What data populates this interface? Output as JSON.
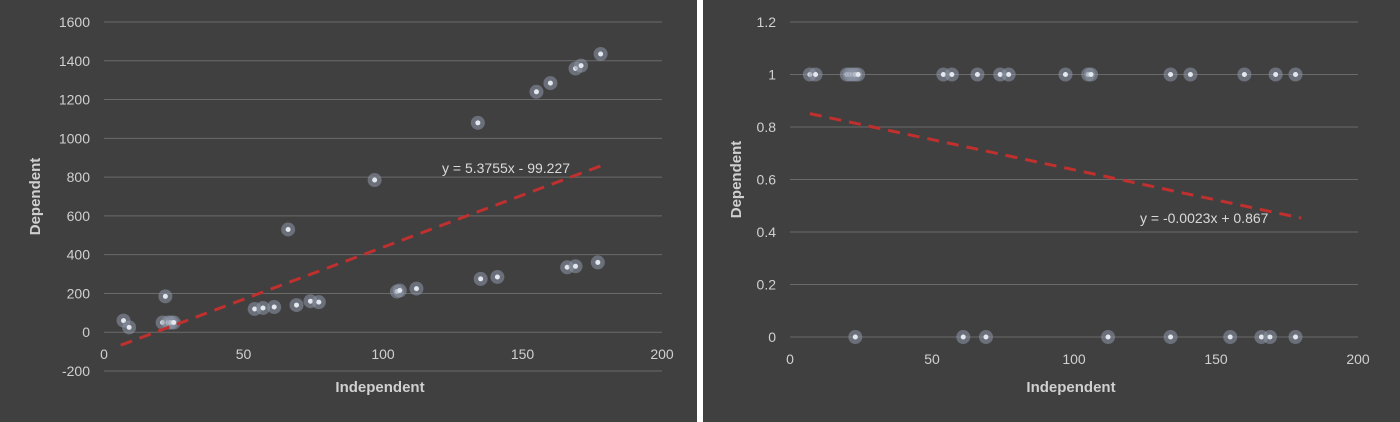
{
  "chart_data": [
    {
      "type": "scatter",
      "xlabel": "Independent",
      "ylabel": "Dependent",
      "xlim": [
        0,
        200
      ],
      "ylim": [
        -200,
        1600
      ],
      "x_ticks": [
        "0",
        "50",
        "100",
        "150",
        "200"
      ],
      "y_ticks": [
        "-200",
        "0",
        "200",
        "400",
        "600",
        "800",
        "1000",
        "1200",
        "1400",
        "1600"
      ],
      "grid": "horizontal",
      "points": [
        {
          "x": 7,
          "y": 60
        },
        {
          "x": 9,
          "y": 25
        },
        {
          "x": 21,
          "y": 50
        },
        {
          "x": 22,
          "y": 185
        },
        {
          "x": 23,
          "y": 50
        },
        {
          "x": 24,
          "y": 50
        },
        {
          "x": 25,
          "y": 50
        },
        {
          "x": 54,
          "y": 120
        },
        {
          "x": 57,
          "y": 125
        },
        {
          "x": 61,
          "y": 130
        },
        {
          "x": 66,
          "y": 530
        },
        {
          "x": 69,
          "y": 140
        },
        {
          "x": 74,
          "y": 160
        },
        {
          "x": 77,
          "y": 155
        },
        {
          "x": 97,
          "y": 785
        },
        {
          "x": 105,
          "y": 210
        },
        {
          "x": 106,
          "y": 215
        },
        {
          "x": 112,
          "y": 225
        },
        {
          "x": 134,
          "y": 1080
        },
        {
          "x": 135,
          "y": 275
        },
        {
          "x": 141,
          "y": 285
        },
        {
          "x": 155,
          "y": 1240
        },
        {
          "x": 160,
          "y": 1285
        },
        {
          "x": 166,
          "y": 335
        },
        {
          "x": 169,
          "y": 340
        },
        {
          "x": 169,
          "y": 1360
        },
        {
          "x": 171,
          "y": 1375
        },
        {
          "x": 177,
          "y": 360
        },
        {
          "x": 178,
          "y": 1435
        }
      ],
      "trendline": {
        "slope": 5.3755,
        "intercept": -99.227,
        "x_range": [
          6,
          178
        ],
        "color": "#c0302e",
        "style": "dashed"
      },
      "equation_label": "y = 5.3755x - 99.227"
    },
    {
      "type": "scatter",
      "xlabel": "Independent",
      "ylabel": "Dependent",
      "xlim": [
        0,
        200
      ],
      "ylim": [
        0,
        1.2
      ],
      "x_ticks": [
        "0",
        "50",
        "100",
        "150",
        "200"
      ],
      "y_ticks": [
        "0",
        "0.2",
        "0.4",
        "0.6",
        "0.8",
        "1",
        "1.2"
      ],
      "grid": "horizontal",
      "points": [
        {
          "x": 7,
          "y": 1
        },
        {
          "x": 9,
          "y": 1
        },
        {
          "x": 20,
          "y": 1
        },
        {
          "x": 21,
          "y": 1
        },
        {
          "x": 22,
          "y": 1
        },
        {
          "x": 23,
          "y": 1
        },
        {
          "x": 24,
          "y": 1
        },
        {
          "x": 23,
          "y": 0
        },
        {
          "x": 54,
          "y": 1
        },
        {
          "x": 57,
          "y": 1
        },
        {
          "x": 61,
          "y": 0
        },
        {
          "x": 66,
          "y": 1
        },
        {
          "x": 69,
          "y": 0
        },
        {
          "x": 74,
          "y": 1
        },
        {
          "x": 77,
          "y": 1
        },
        {
          "x": 97,
          "y": 1
        },
        {
          "x": 105,
          "y": 1
        },
        {
          "x": 106,
          "y": 1
        },
        {
          "x": 112,
          "y": 0
        },
        {
          "x": 134,
          "y": 1
        },
        {
          "x": 134,
          "y": 0
        },
        {
          "x": 141,
          "y": 1
        },
        {
          "x": 155,
          "y": 0
        },
        {
          "x": 160,
          "y": 1
        },
        {
          "x": 166,
          "y": 0
        },
        {
          "x": 169,
          "y": 0
        },
        {
          "x": 171,
          "y": 1
        },
        {
          "x": 178,
          "y": 1
        },
        {
          "x": 178,
          "y": 0
        }
      ],
      "trendline": {
        "slope": -0.0023,
        "intercept": 0.867,
        "x_range": [
          7,
          180
        ],
        "color": "#c0302e",
        "style": "dashed"
      },
      "equation_label": "y = -0.0023x + 0.867"
    }
  ]
}
